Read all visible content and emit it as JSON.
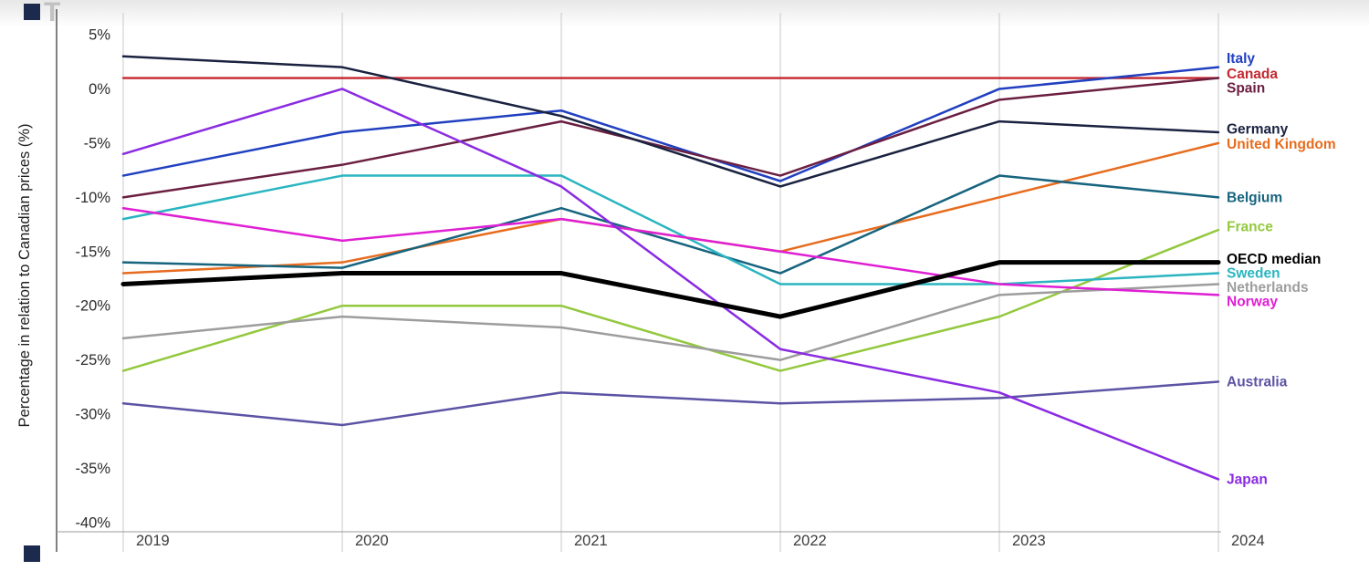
{
  "artifacts": {
    "glyph": "T",
    "square_color": "#1c2b4d",
    "glyph_color": "#c2c2c2"
  },
  "chart_data": {
    "type": "line",
    "title": "",
    "xlabel": "",
    "ylabel": "Percentage in relation to Canadian prices (%)",
    "x": [
      "2019",
      "2020",
      "2021",
      "2022",
      "2023",
      "2024"
    ],
    "ylim": [
      -40,
      5
    ],
    "yticks": [
      5,
      0,
      -5,
      -10,
      -15,
      -20,
      -25,
      -30,
      -35,
      -40
    ],
    "ytick_suffix": "%",
    "grid": "vertical-only",
    "legend_position": "right-edge-labels",
    "series": [
      {
        "name": "Italy",
        "color": "#2140c0",
        "width": 2.5,
        "label_y": 2.8,
        "values": [
          -8,
          -4,
          -2,
          -8.5,
          0,
          2
        ]
      },
      {
        "name": "Canada",
        "color": "#c4272e",
        "width": 2.3,
        "label_y": 1.4,
        "values": [
          1,
          1,
          1,
          1,
          1,
          1
        ]
      },
      {
        "name": "Spain",
        "color": "#6b1f41",
        "width": 2.5,
        "label_y": 0.1,
        "values": [
          -10,
          -7,
          -3,
          -8,
          -1,
          1
        ]
      },
      {
        "name": "Germany",
        "color": "#1a2240",
        "width": 2.5,
        "label_y": -3.7,
        "values": [
          3,
          2,
          -2.5,
          -9,
          -3,
          -4
        ]
      },
      {
        "name": "United Kingdom",
        "color": "#e66c1f",
        "width": 2.5,
        "label_y": -5.1,
        "values": [
          -17,
          -16,
          -12,
          -15,
          -10,
          -5
        ]
      },
      {
        "name": "Belgium",
        "color": "#17647f",
        "width": 2.5,
        "label_y": -10.0,
        "values": [
          -16,
          -16.5,
          -11,
          -17,
          -8,
          -10
        ]
      },
      {
        "name": "France",
        "color": "#93c83e",
        "width": 2.5,
        "label_y": -12.7,
        "values": [
          -26,
          -20,
          -20,
          -26,
          -21,
          -13
        ]
      },
      {
        "name": "OECD median",
        "color": "#000000",
        "width": 5,
        "label_y": -15.7,
        "values": [
          -18,
          -17,
          -17,
          -21,
          -16,
          -16
        ]
      },
      {
        "name": "Sweden",
        "color": "#2ab5c0",
        "width": 2.5,
        "label_y": -17.0,
        "values": [
          -12,
          -8,
          -8,
          -18,
          -18,
          -17
        ]
      },
      {
        "name": "Netherlands",
        "color": "#9d9d9d",
        "width": 2.5,
        "label_y": -18.3,
        "values": [
          -23,
          -21,
          -22,
          -25,
          -19,
          -18
        ]
      },
      {
        "name": "Norway",
        "color": "#df1fd4",
        "width": 2.5,
        "label_y": -19.6,
        "values": [
          -11,
          -14,
          -12,
          -15,
          -18,
          -19
        ]
      },
      {
        "name": "Australia",
        "color": "#5c53a4",
        "width": 2.5,
        "label_y": -27.0,
        "values": [
          -29,
          -31,
          -28,
          -29,
          -28.5,
          -27
        ]
      },
      {
        "name": "Japan",
        "color": "#8a2be2",
        "width": 2.5,
        "label_y": -36.0,
        "values": [
          -6,
          0,
          -9,
          -24,
          -28,
          -36
        ]
      }
    ]
  }
}
